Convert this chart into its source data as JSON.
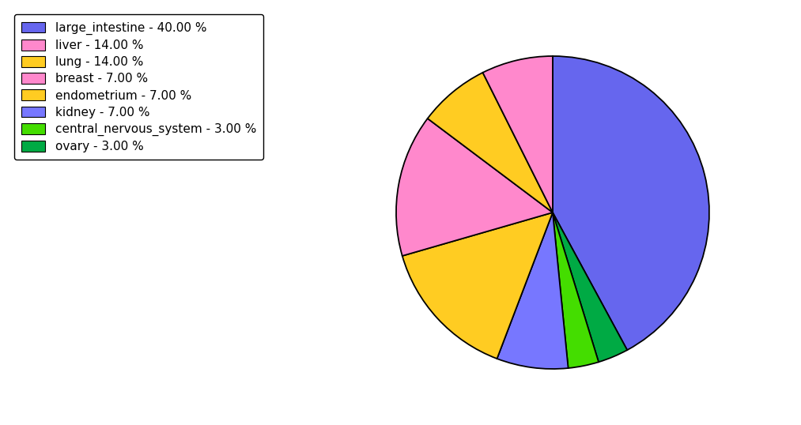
{
  "slices": [
    {
      "label": "large_intestine",
      "pct": 40.0,
      "color": "#6666ee"
    },
    {
      "label": "ovary",
      "pct": 3.0,
      "color": "#00aa44"
    },
    {
      "label": "central_nervous_system",
      "pct": 3.0,
      "color": "#44dd00"
    },
    {
      "label": "kidney",
      "pct": 7.0,
      "color": "#7777ff"
    },
    {
      "label": "lung",
      "pct": 14.0,
      "color": "#ffcc22"
    },
    {
      "label": "liver",
      "pct": 14.0,
      "color": "#ff88cc"
    },
    {
      "label": "endometrium",
      "pct": 7.0,
      "color": "#ffcc22"
    },
    {
      "label": "breast",
      "pct": 7.0,
      "color": "#ff88cc"
    }
  ],
  "legend_order": [
    {
      "label": "large_intestine - 40.00 %",
      "color": "#6666ee"
    },
    {
      "label": "liver - 14.00 %",
      "color": "#ff88cc"
    },
    {
      "label": "lung - 14.00 %",
      "color": "#ffcc22"
    },
    {
      "label": "breast - 7.00 %",
      "color": "#ff88cc"
    },
    {
      "label": "endometrium - 7.00 %",
      "color": "#ffcc22"
    },
    {
      "label": "kidney - 7.00 %",
      "color": "#7777ff"
    },
    {
      "label": "central_nervous_system - 3.00 %",
      "color": "#44dd00"
    },
    {
      "label": "ovary - 3.00 %",
      "color": "#00aa44"
    }
  ],
  "background_color": "#ffffff",
  "figsize": [
    10.13,
    5.38
  ],
  "dpi": 100
}
